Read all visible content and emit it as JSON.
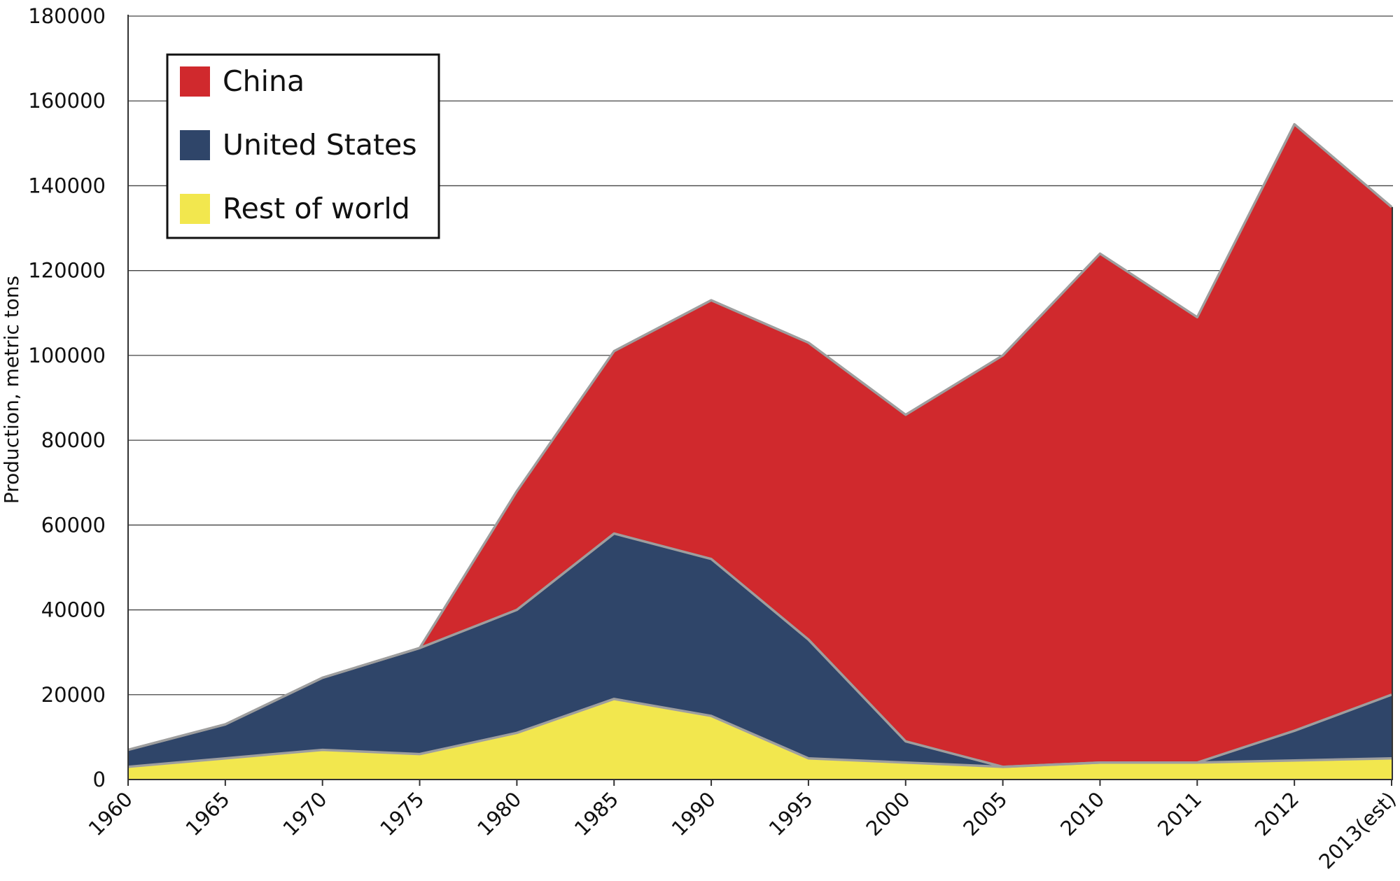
{
  "chart_data": {
    "type": "area",
    "stacked": true,
    "title": "",
    "xlabel": "",
    "ylabel": "Production, metric tons",
    "ylim": [
      0,
      180000
    ],
    "yticks": [
      0,
      20000,
      40000,
      60000,
      80000,
      100000,
      120000,
      140000,
      160000,
      180000
    ],
    "ytick_labels": [
      "0",
      "20000",
      "40000",
      "60000",
      "80000",
      "100000",
      "120000",
      "140000",
      "160000",
      "180000"
    ],
    "categories": [
      "1960",
      "1965",
      "1970",
      "1975",
      "1980",
      "1985",
      "1990",
      "1995",
      "2000",
      "2005",
      "2010",
      "2011",
      "2012",
      "2013(est)"
    ],
    "grid": true,
    "legend_position": "top-left",
    "series": [
      {
        "name": "Rest of world",
        "color": "#f2e74e",
        "values": [
          3000,
          5000,
          7000,
          6000,
          11000,
          19000,
          15000,
          5000,
          4000,
          3000,
          4000,
          4000,
          4500,
          5000
        ]
      },
      {
        "name": "United States",
        "color": "#2f4569",
        "values": [
          4000,
          8000,
          17000,
          25000,
          29000,
          39000,
          37000,
          28000,
          5000,
          0,
          0,
          0,
          7000,
          15000
        ]
      },
      {
        "name": "China",
        "color": "#d0292d",
        "values": [
          0,
          0,
          0,
          0,
          28000,
          43000,
          61000,
          70000,
          77000,
          97000,
          120000,
          105000,
          143000,
          115000
        ]
      }
    ],
    "legend_order": [
      "China",
      "United States",
      "Rest of world"
    ]
  }
}
